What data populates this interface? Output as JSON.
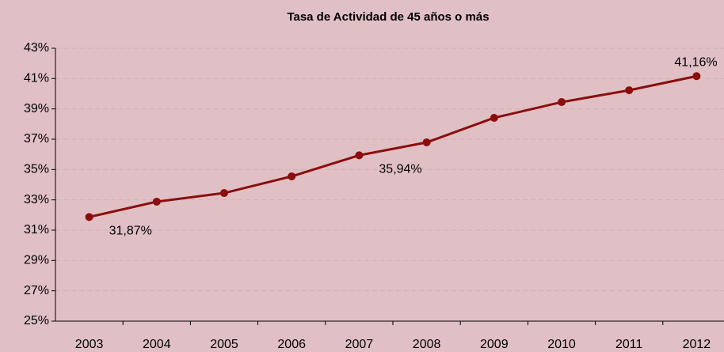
{
  "chart_data": {
    "type": "line",
    "title": "Tasa de Actividad de 45 años o más",
    "categories": [
      "2003",
      "2004",
      "2005",
      "2006",
      "2007",
      "2008",
      "2009",
      "2010",
      "2011",
      "2012"
    ],
    "series": [
      {
        "name": "Tasa de Actividad",
        "color": "#8b0d0d",
        "values": [
          31.87,
          32.88,
          33.45,
          34.55,
          35.94,
          36.79,
          38.41,
          39.45,
          40.23,
          41.16
        ],
        "value_labels": [
          "31,87%",
          null,
          null,
          null,
          "35,94%",
          null,
          null,
          null,
          null,
          "41,16%"
        ]
      }
    ],
    "ylim": [
      25,
      43
    ],
    "yticks": [
      {
        "value": 25,
        "label": "25%"
      },
      {
        "value": 27,
        "label": "27%"
      },
      {
        "value": 29,
        "label": "29%"
      },
      {
        "value": 31,
        "label": "31%"
      },
      {
        "value": 33,
        "label": "33%"
      },
      {
        "value": 35,
        "label": "35%"
      },
      {
        "value": 37,
        "label": "37%"
      },
      {
        "value": 39,
        "label": "39%"
      },
      {
        "value": 41,
        "label": "41%"
      },
      {
        "value": 43,
        "label": "43%"
      }
    ],
    "grid": true
  }
}
